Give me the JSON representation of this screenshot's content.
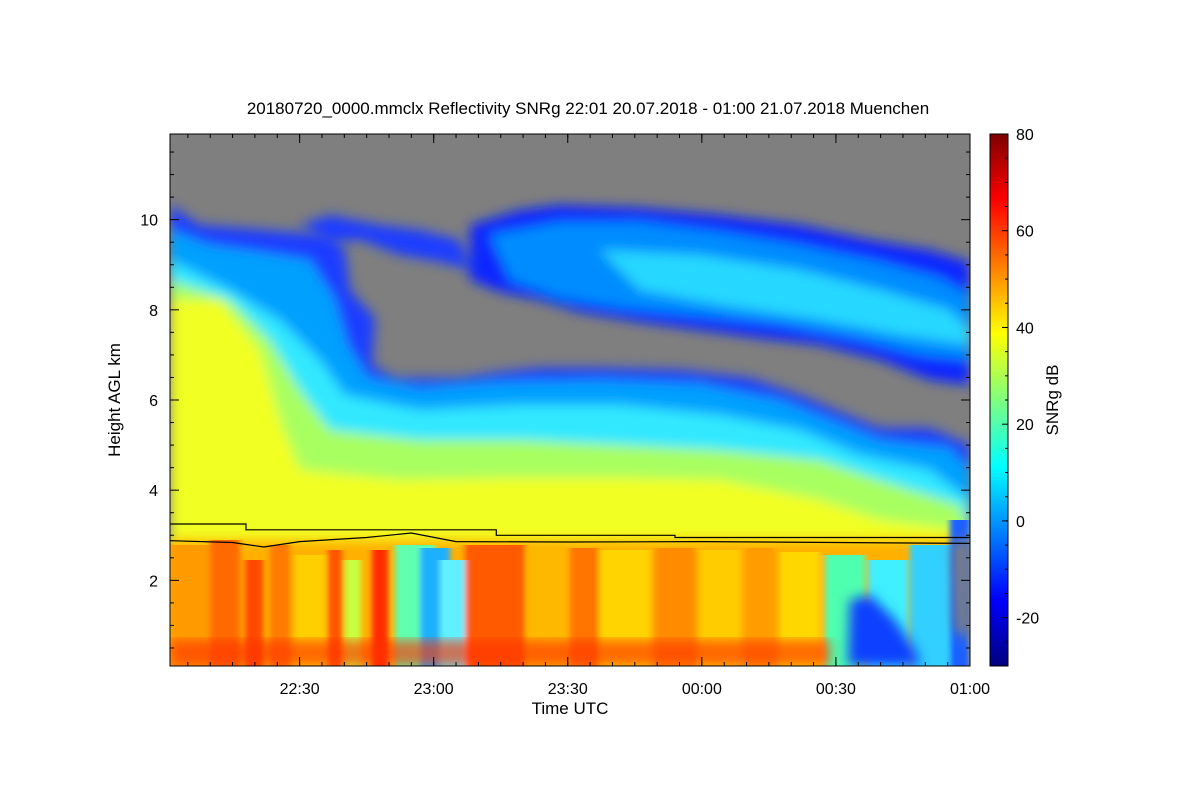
{
  "chart_data": {
    "type": "heatmap",
    "title": "20180720_0000.mmclx Reflectivity SNRg   22:01 20.07.2018 - 01:00 21.07.2018 Muenchen",
    "xlabel": "Time UTC",
    "ylabel": "Height AGL km",
    "xlim": [
      "22:01",
      "01:00"
    ],
    "ylim": [
      0.1,
      11.9
    ],
    "x_ticks": [
      "22:30",
      "23:00",
      "23:30",
      "00:00",
      "00:30",
      "01:00"
    ],
    "y_ticks": [
      2,
      4,
      6,
      8,
      10
    ],
    "colorbar": {
      "label": "SNRg dB",
      "range": [
        -30,
        80
      ],
      "ticks": [
        -20,
        0,
        20,
        40,
        60,
        80
      ],
      "colors": [
        "#00007f",
        "#0000ff",
        "#007fff",
        "#00ffff",
        "#7fff7f",
        "#ffff00",
        "#ff7f00",
        "#ff0000",
        "#7f0000"
      ]
    },
    "no_signal_color": "#7f7f7f",
    "grid": false,
    "echo_regions": [
      {
        "name": "low-level rain",
        "time_range": [
          "22:01",
          "00:56"
        ],
        "height_km": [
          0.1,
          3.0
        ],
        "snr_db": [
          35,
          58
        ]
      },
      {
        "name": "mid-level cloud",
        "time_range": [
          "22:01",
          "01:00"
        ],
        "height_km": [
          3.0,
          6.5
        ],
        "snr_db": [
          0,
          40
        ]
      },
      {
        "name": "upper cirrus",
        "time_range": [
          "23:05",
          "01:00"
        ],
        "height_km": [
          6.5,
          10.5
        ],
        "snr_db": [
          -25,
          15
        ]
      },
      {
        "name": "weak echo region",
        "time_range": [
          "00:33",
          "00:58"
        ],
        "height_km": [
          0.1,
          1.5
        ],
        "snr_db": [
          -20,
          0
        ]
      }
    ],
    "lines": [
      {
        "name": "upper black line",
        "points": [
          [
            "22:01",
            3.25
          ],
          [
            "22:18",
            3.25
          ],
          [
            "22:18",
            3.12
          ],
          [
            "23:14",
            3.12
          ],
          [
            "23:14",
            3.0
          ],
          [
            "23:54",
            3.0
          ],
          [
            "23:54",
            2.95
          ],
          [
            "01:00",
            2.95
          ]
        ]
      },
      {
        "name": "lower black line",
        "points": [
          [
            "22:01",
            2.88
          ],
          [
            "22:15",
            2.84
          ],
          [
            "22:22",
            2.74
          ],
          [
            "22:30",
            2.86
          ],
          [
            "22:45",
            2.95
          ],
          [
            "22:55",
            3.05
          ],
          [
            "23:05",
            2.86
          ],
          [
            "23:30",
            2.85
          ],
          [
            "00:00",
            2.86
          ],
          [
            "00:30",
            2.84
          ],
          [
            "01:00",
            2.82
          ]
        ]
      }
    ]
  }
}
